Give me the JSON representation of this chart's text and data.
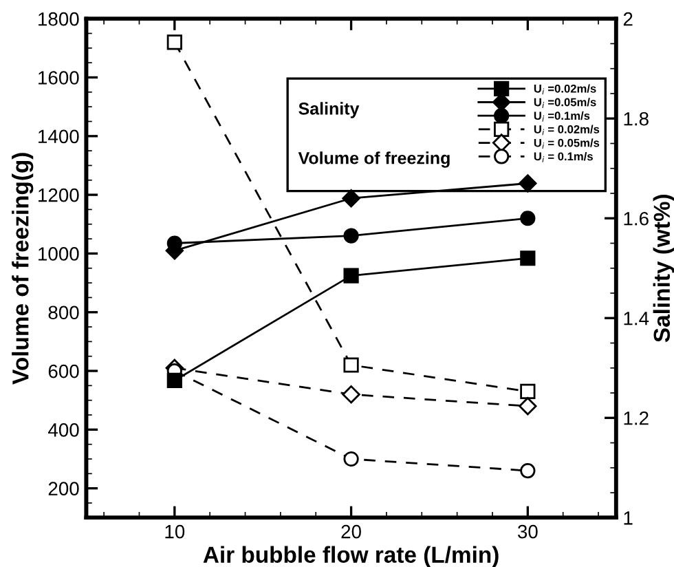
{
  "chart_data": {
    "type": "line",
    "xlabel": "Air bubble flow rate (L/min)",
    "ylabel": "Volume of freezing(g)",
    "y2label": "Salinity (wt%)",
    "x": [
      10,
      20,
      30
    ],
    "xlim": [
      5,
      35
    ],
    "xticks": [
      10,
      20,
      30
    ],
    "ylim": [
      100,
      1800
    ],
    "yticks": [
      200,
      400,
      600,
      800,
      1000,
      1200,
      1400,
      1600,
      1800
    ],
    "y2lim": [
      1,
      2
    ],
    "y2ticks": [
      1,
      1.2,
      1.4,
      1.6,
      1.8,
      2
    ],
    "grid": false,
    "legend": "top right",
    "annotations": [
      "Salinity",
      "Volume of freezing"
    ],
    "series": [
      {
        "name": "U$_{i}$ =0.02m/s",
        "color": "#000000",
        "axis": "y2",
        "marker": "square",
        "line_style": "solid",
        "values": [
          1.275,
          1.485,
          1.52
        ]
      },
      {
        "name": "U$_{i}$ =0.05m/s",
        "color": "#000000",
        "axis": "y2",
        "marker": "diamond",
        "line_style": "solid",
        "values": [
          1.535,
          1.64,
          1.67
        ]
      },
      {
        "name": "U$_{i}$ =0.1m/s",
        "color": "#000000",
        "axis": "y2",
        "marker": "circle",
        "line_style": "solid",
        "values": [
          1.55,
          1.565,
          1.6
        ]
      },
      {
        "name": "U$_{i}$ = 0.02m/s",
        "color": "#000000",
        "axis": "y",
        "marker": "square",
        "line_style": "dashed",
        "values": [
          1720,
          620,
          530
        ]
      },
      {
        "name": "U$_{i}$ = 0.05m/s",
        "color": "#000000",
        "axis": "y",
        "marker": "diamond",
        "line_style": "dashed",
        "values": [
          610,
          520,
          480
        ]
      },
      {
        "name": "U$_{i}$ = 0.1m/s",
        "color": "#000000",
        "axis": "y",
        "marker": "circle",
        "line_style": "dashed",
        "values": [
          600,
          300,
          260
        ]
      }
    ]
  }
}
